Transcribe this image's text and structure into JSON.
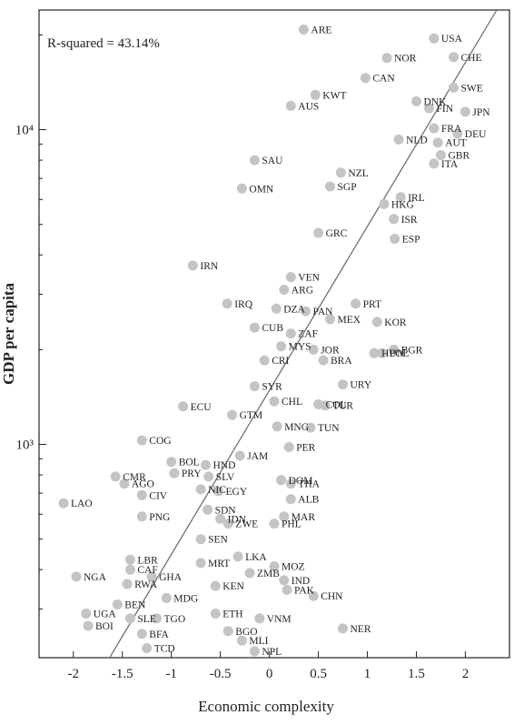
{
  "chart_data": {
    "type": "scatter",
    "title": "",
    "xlabel": "Economic complexity",
    "ylabel": "GDP per capita",
    "annotation": "R-squared = 43.14%",
    "x_scale": "linear",
    "y_scale": "log",
    "xlim": [
      -2.35,
      2.45
    ],
    "ylim": [
      210,
      24000
    ],
    "x_ticks": [
      -2,
      -1.5,
      -1,
      -0.5,
      0,
      0.5,
      1,
      1.5,
      2
    ],
    "x_tick_labels": [
      "-2",
      "-1.5",
      "-1",
      "-0.5",
      "0",
      "0.5",
      "1",
      "1.5",
      "2"
    ],
    "y_ticks": [
      1000,
      10000
    ],
    "y_tick_labels": [
      "10³",
      "10⁴"
    ],
    "grid": false,
    "fit_line": {
      "x": [
        -1.63,
        2.32
      ],
      "y": [
        210,
        24000
      ]
    },
    "points": [
      {
        "label": "USA",
        "x": 1.68,
        "y": 19500
      },
      {
        "label": "CHE",
        "x": 1.88,
        "y": 17000
      },
      {
        "label": "ARE",
        "x": 0.35,
        "y": 20800
      },
      {
        "label": "NOR",
        "x": 1.2,
        "y": 16900
      },
      {
        "label": "CAN",
        "x": 0.98,
        "y": 14600
      },
      {
        "label": "SWE",
        "x": 1.88,
        "y": 13600
      },
      {
        "label": "DNK",
        "x": 1.5,
        "y": 12300
      },
      {
        "label": "FIN",
        "x": 1.63,
        "y": 11700
      },
      {
        "label": "JPN",
        "x": 2.0,
        "y": 11400
      },
      {
        "label": "KWT",
        "x": 0.47,
        "y": 12900
      },
      {
        "label": "AUS",
        "x": 0.22,
        "y": 11900
      },
      {
        "label": "FRA",
        "x": 1.68,
        "y": 10100
      },
      {
        "label": "DEU",
        "x": 1.92,
        "y": 9700
      },
      {
        "label": "NLD",
        "x": 1.32,
        "y": 9300
      },
      {
        "label": "AUT",
        "x": 1.72,
        "y": 9100
      },
      {
        "label": "GBR",
        "x": 1.75,
        "y": 8300
      },
      {
        "label": "ITA",
        "x": 1.68,
        "y": 7800
      },
      {
        "label": "SAU",
        "x": -0.15,
        "y": 8000
      },
      {
        "label": "NZL",
        "x": 0.73,
        "y": 7300
      },
      {
        "label": "SGP",
        "x": 0.62,
        "y": 6600
      },
      {
        "label": "OMN",
        "x": -0.28,
        "y": 6500
      },
      {
        "label": "HKG",
        "x": 1.17,
        "y": 5800
      },
      {
        "label": "IRL",
        "x": 1.34,
        "y": 6100
      },
      {
        "label": "ISR",
        "x": 1.27,
        "y": 5200
      },
      {
        "label": "ESP",
        "x": 1.28,
        "y": 4500
      },
      {
        "label": "GRC",
        "x": 0.5,
        "y": 4700
      },
      {
        "label": "IRN",
        "x": -0.78,
        "y": 3700
      },
      {
        "label": "VEN",
        "x": 0.22,
        "y": 3400
      },
      {
        "label": "ARG",
        "x": 0.15,
        "y": 3100
      },
      {
        "label": "PRT",
        "x": 0.88,
        "y": 2800
      },
      {
        "label": "IRQ",
        "x": -0.43,
        "y": 2800
      },
      {
        "label": "PAN",
        "x": 0.37,
        "y": 2650
      },
      {
        "label": "DZA",
        "x": 0.07,
        "y": 2700
      },
      {
        "label": "KOR",
        "x": 1.1,
        "y": 2450
      },
      {
        "label": "MEX",
        "x": 0.62,
        "y": 2500
      },
      {
        "label": "CUB",
        "x": -0.15,
        "y": 2350
      },
      {
        "label": "ZAF",
        "x": 0.22,
        "y": 2250
      },
      {
        "label": "HUN",
        "x": 1.07,
        "y": 1950
      },
      {
        "label": "BGR",
        "x": 1.27,
        "y": 2000
      },
      {
        "label": "MYS",
        "x": 0.12,
        "y": 2050
      },
      {
        "label": "JOR",
        "x": 0.45,
        "y": 2000
      },
      {
        "label": "CRI",
        "x": -0.05,
        "y": 1850
      },
      {
        "label": "BRA",
        "x": 0.55,
        "y": 1850
      },
      {
        "label": "POL",
        "x": 1.15,
        "y": 1950
      },
      {
        "label": "URY",
        "x": 0.75,
        "y": 1550
      },
      {
        "label": "SYR",
        "x": -0.15,
        "y": 1530
      },
      {
        "label": "ECU",
        "x": -0.88,
        "y": 1320
      },
      {
        "label": "CHL",
        "x": 0.05,
        "y": 1370
      },
      {
        "label": "COL",
        "x": 0.5,
        "y": 1340
      },
      {
        "label": "TUR",
        "x": 0.57,
        "y": 1330
      },
      {
        "label": "GTM",
        "x": -0.38,
        "y": 1240
      },
      {
        "label": "TUN",
        "x": 0.42,
        "y": 1130
      },
      {
        "label": "MNG",
        "x": 0.08,
        "y": 1140
      },
      {
        "label": "COG",
        "x": -1.3,
        "y": 1030
      },
      {
        "label": "JAM",
        "x": -0.3,
        "y": 920
      },
      {
        "label": "PER",
        "x": 0.2,
        "y": 980
      },
      {
        "label": "BOL",
        "x": -1.0,
        "y": 880
      },
      {
        "label": "HND",
        "x": -0.65,
        "y": 860
      },
      {
        "label": "CMR",
        "x": -1.57,
        "y": 790
      },
      {
        "label": "AGO",
        "x": -1.48,
        "y": 750
      },
      {
        "label": "PRY",
        "x": -0.97,
        "y": 810
      },
      {
        "label": "SLV",
        "x": -0.62,
        "y": 790
      },
      {
        "label": "DOM",
        "x": 0.12,
        "y": 770
      },
      {
        "label": "THA",
        "x": 0.22,
        "y": 750
      },
      {
        "label": "CIV",
        "x": -1.3,
        "y": 690
      },
      {
        "label": "NIC",
        "x": -0.7,
        "y": 720
      },
      {
        "label": "EGY",
        "x": -0.52,
        "y": 710
      },
      {
        "label": "ALB",
        "x": 0.22,
        "y": 670
      },
      {
        "label": "LAO",
        "x": -2.1,
        "y": 650
      },
      {
        "label": "PNG",
        "x": -1.3,
        "y": 590
      },
      {
        "label": "SDN",
        "x": -0.63,
        "y": 620
      },
      {
        "label": "MAR",
        "x": 0.15,
        "y": 590
      },
      {
        "label": "IDN",
        "x": -0.5,
        "y": 580
      },
      {
        "label": "ZWE",
        "x": -0.42,
        "y": 560
      },
      {
        "label": "PHL",
        "x": 0.05,
        "y": 560
      },
      {
        "label": "SEN",
        "x": -0.7,
        "y": 500
      },
      {
        "label": "LBR",
        "x": -1.42,
        "y": 430
      },
      {
        "label": "LKA",
        "x": -0.32,
        "y": 440
      },
      {
        "label": "MRT",
        "x": -0.7,
        "y": 420
      },
      {
        "label": "MOZ",
        "x": 0.05,
        "y": 410
      },
      {
        "label": "CAF",
        "x": -1.42,
        "y": 400
      },
      {
        "label": "ZMB",
        "x": -0.2,
        "y": 390
      },
      {
        "label": "GHA",
        "x": -1.2,
        "y": 380
      },
      {
        "label": "NGA",
        "x": -1.97,
        "y": 380
      },
      {
        "label": "IND",
        "x": 0.15,
        "y": 370
      },
      {
        "label": "RWA",
        "x": -1.45,
        "y": 360
      },
      {
        "label": "KEN",
        "x": -0.55,
        "y": 355
      },
      {
        "label": "PAK",
        "x": 0.18,
        "y": 345
      },
      {
        "label": "CHN",
        "x": 0.45,
        "y": 330
      },
      {
        "label": "MDG",
        "x": -1.05,
        "y": 325
      },
      {
        "label": "BEN",
        "x": -1.55,
        "y": 310
      },
      {
        "label": "UGA",
        "x": -1.87,
        "y": 290
      },
      {
        "label": "ETH",
        "x": -0.55,
        "y": 290
      },
      {
        "label": "VNM",
        "x": -0.1,
        "y": 280
      },
      {
        "label": "BOI",
        "x": -1.85,
        "y": 265
      },
      {
        "label": "SLE",
        "x": -1.42,
        "y": 280
      },
      {
        "label": "TGO",
        "x": -1.15,
        "y": 280
      },
      {
        "label": "NER",
        "x": 0.75,
        "y": 260
      },
      {
        "label": "BFA",
        "x": -1.3,
        "y": 250
      },
      {
        "label": "BGO",
        "x": -0.42,
        "y": 255
      },
      {
        "label": "TCD",
        "x": -1.25,
        "y": 225
      },
      {
        "label": "MLI",
        "x": -0.28,
        "y": 238
      },
      {
        "label": "NPL",
        "x": -0.15,
        "y": 220
      }
    ]
  }
}
